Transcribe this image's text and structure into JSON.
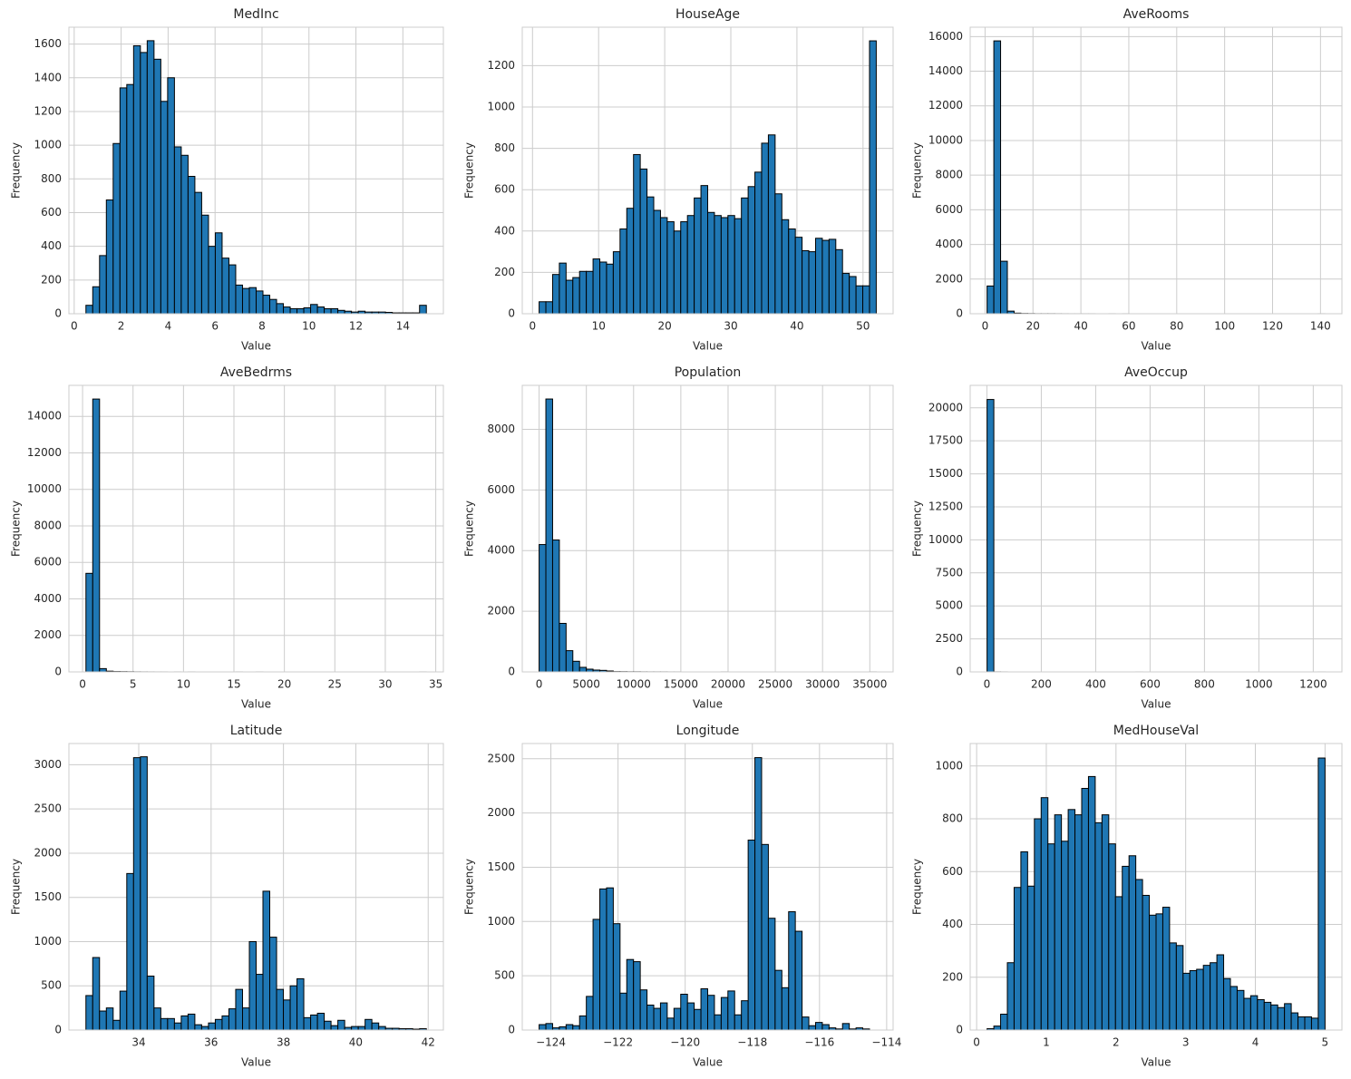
{
  "chart_data": [
    {
      "type": "histogram",
      "title": "MedInc",
      "xlabel": "Value",
      "ylabel": "Frequency",
      "color": "#1f77b4",
      "grid": true,
      "bins": [
        0.5,
        0.79,
        1.08,
        1.37,
        1.66,
        1.95,
        2.24,
        2.53,
        2.82,
        3.11,
        3.4,
        3.69,
        3.98,
        4.27,
        4.56,
        4.85,
        5.14,
        5.43,
        5.72,
        6.01,
        6.3,
        6.59,
        6.88,
        7.17,
        7.46,
        7.75,
        8.04,
        8.33,
        8.62,
        8.91,
        9.2,
        9.49,
        9.78,
        10.07,
        10.36,
        10.65,
        10.94,
        11.23,
        11.52,
        11.81,
        12.1,
        12.39,
        12.68,
        12.97,
        13.26,
        13.55,
        13.84,
        14.13,
        14.42,
        14.71,
        15.0
      ],
      "values": [
        50,
        160,
        345,
        675,
        1010,
        1340,
        1360,
        1590,
        1550,
        1620,
        1510,
        1260,
        1400,
        990,
        940,
        815,
        720,
        585,
        400,
        480,
        330,
        290,
        170,
        150,
        155,
        135,
        110,
        85,
        60,
        40,
        30,
        30,
        35,
        55,
        40,
        30,
        30,
        20,
        15,
        10,
        15,
        10,
        10,
        10,
        8,
        5,
        5,
        5,
        5,
        50
      ],
      "xlim": [
        -0.225,
        15.725
      ],
      "xticks": [
        0,
        2,
        4,
        6,
        8,
        10,
        12,
        14
      ],
      "ylim": [
        0,
        1700
      ],
      "yticks": [
        0,
        200,
        400,
        600,
        800,
        1000,
        1200,
        1400,
        1600
      ]
    },
    {
      "type": "histogram",
      "title": "HouseAge",
      "xlabel": "Value",
      "ylabel": "Frequency",
      "color": "#1f77b4",
      "grid": true,
      "bins": [
        1,
        2.02,
        3.04,
        4.06,
        5.08,
        6.1,
        7.12,
        8.14,
        9.16,
        10.18,
        11.2,
        12.22,
        13.24,
        14.26,
        15.28,
        16.3,
        17.32,
        18.34,
        19.36,
        20.38,
        21.4,
        22.42,
        23.44,
        24.46,
        25.48,
        26.5,
        27.52,
        28.54,
        29.56,
        30.58,
        31.6,
        32.62,
        33.64,
        34.66,
        35.68,
        36.7,
        37.72,
        38.74,
        39.76,
        40.78,
        41.8,
        42.82,
        43.84,
        44.86,
        45.88,
        46.9,
        47.92,
        48.94,
        49.96,
        50.98,
        52
      ],
      "values": [
        58,
        58,
        190,
        245,
        162,
        175,
        205,
        205,
        265,
        250,
        240,
        300,
        410,
        510,
        770,
        700,
        565,
        500,
        465,
        445,
        400,
        445,
        475,
        560,
        620,
        490,
        475,
        465,
        475,
        460,
        560,
        615,
        685,
        825,
        865,
        580,
        455,
        410,
        370,
        305,
        300,
        365,
        355,
        360,
        310,
        195,
        180,
        135,
        135,
        1320
      ],
      "xlim": [
        -1.55,
        54.55
      ],
      "xticks": [
        0,
        10,
        20,
        30,
        40,
        50
      ],
      "ylim": [
        0,
        1386
      ],
      "yticks": [
        0,
        200,
        400,
        600,
        800,
        1000,
        1200
      ]
    },
    {
      "type": "histogram",
      "title": "AveRooms",
      "xlabel": "Value",
      "ylabel": "Frequency",
      "color": "#1f77b4",
      "grid": true,
      "bins": [
        0.846,
        3.667,
        6.488,
        9.309,
        12.13,
        14.951,
        17.772,
        20.593,
        23.414,
        26.235,
        29.056,
        31.877,
        34.698,
        37.519,
        40.34,
        43.161,
        45.982,
        48.803,
        51.624,
        54.445,
        57.266,
        60.087,
        62.908,
        65.729,
        68.55,
        71.371,
        74.192,
        77.013,
        79.834,
        82.655,
        85.476,
        88.297,
        91.118,
        93.939,
        96.76,
        99.581,
        102.402,
        105.223,
        108.044,
        110.865,
        113.686,
        116.507,
        119.328,
        122.149,
        124.97,
        127.791,
        130.612,
        133.433,
        136.254,
        139.075,
        141.896
      ],
      "values": [
        1600,
        15750,
        3030,
        150,
        35,
        15,
        10,
        5,
        5,
        5,
        3,
        2,
        1,
        1,
        1,
        1,
        0,
        0,
        1,
        0,
        1,
        0,
        0,
        0,
        0,
        0,
        0,
        0,
        0,
        0,
        0,
        0,
        0,
        0,
        0,
        0,
        0,
        0,
        0,
        0,
        0,
        0,
        0,
        0,
        0,
        0,
        0,
        0,
        0,
        1
      ],
      "xlim": [
        -6.206,
        148.948
      ],
      "xticks": [
        0,
        20,
        40,
        60,
        80,
        100,
        120,
        140
      ],
      "ylim": [
        0,
        16540
      ],
      "yticks": [
        0,
        2000,
        4000,
        6000,
        8000,
        10000,
        12000,
        14000,
        16000
      ]
    },
    {
      "type": "histogram",
      "title": "AveBedrms",
      "xlabel": "Value",
      "ylabel": "Frequency",
      "color": "#1f77b4",
      "grid": true,
      "bins": [
        0.333,
        1.008,
        1.682,
        2.357,
        3.032,
        3.707,
        4.381,
        5.056,
        5.731,
        6.405,
        7.08,
        7.755,
        8.43,
        9.104,
        9.779,
        10.454,
        11.128,
        11.803,
        12.478,
        13.153,
        13.827,
        14.502,
        15.177,
        15.851,
        16.526,
        17.201,
        17.876,
        18.55,
        19.225,
        19.9,
        20.574,
        21.249,
        21.924,
        22.599,
        23.273,
        23.948,
        24.623,
        25.297,
        25.972,
        26.647,
        27.322,
        27.996,
        28.671,
        29.346,
        30.02,
        30.695,
        31.37,
        32.045,
        32.719,
        33.394,
        34.069
      ],
      "values": [
        5400,
        14950,
        180,
        40,
        20,
        15,
        10,
        5,
        3,
        2,
        1,
        1,
        0,
        1,
        0,
        1,
        0,
        0,
        0,
        0,
        0,
        0,
        1,
        0,
        0,
        1,
        0,
        0,
        0,
        0,
        0,
        0,
        0,
        0,
        0,
        0,
        0,
        0,
        0,
        0,
        0,
        0,
        0,
        0,
        0,
        0,
        0,
        0,
        0,
        1
      ],
      "xlim": [
        -1.354,
        35.756
      ],
      "xticks": [
        0,
        5,
        10,
        15,
        20,
        25,
        30,
        35
      ],
      "ylim": [
        0,
        15700
      ],
      "yticks": [
        0,
        2000,
        4000,
        6000,
        8000,
        10000,
        12000,
        14000
      ]
    },
    {
      "type": "histogram",
      "title": "Population",
      "xlabel": "Value",
      "ylabel": "Frequency",
      "color": "#1f77b4",
      "grid": true,
      "bins": [
        3,
        716.6,
        1430.2,
        2143.7,
        2857.3,
        3570.9,
        4284.5,
        4998.1,
        5711.6,
        6425.2,
        7138.8,
        7852.4,
        8566,
        9279.5,
        9993.1,
        10706.7,
        11420.3,
        12133.9,
        12847.4,
        13561,
        14274.6,
        14988.2,
        15701.8,
        16415.3,
        17128.9,
        17842.5,
        18556.1,
        19269.7,
        19983.2,
        20696.8,
        21410.4,
        22124,
        22837.6,
        23551.1,
        24264.7,
        24978.3,
        25691.9,
        26405.5,
        27119,
        27832.6,
        28546.2,
        29259.8,
        29973.4,
        30686.9,
        31400.5,
        32114.1,
        32827.7,
        33541.3,
        34254.8,
        34968.4,
        35682
      ],
      "values": [
        4200,
        9000,
        4350,
        1600,
        700,
        350,
        150,
        90,
        60,
        50,
        30,
        10,
        8,
        5,
        5,
        3,
        2,
        2,
        2,
        1,
        1,
        0,
        0,
        0,
        0,
        0,
        0,
        1,
        0,
        0,
        0,
        0,
        0,
        0,
        0,
        0,
        0,
        0,
        0,
        0,
        0,
        0,
        0,
        0,
        0,
        0,
        0,
        0,
        0,
        1
      ],
      "xlim": [
        -1781,
        37466
      ],
      "xticks": [
        0,
        5000,
        10000,
        15000,
        20000,
        25000,
        30000,
        35000
      ],
      "ylim": [
        0,
        9450
      ],
      "yticks": [
        0,
        2000,
        4000,
        6000,
        8000
      ]
    },
    {
      "type": "histogram",
      "title": "AveOccup",
      "xlabel": "Value",
      "ylabel": "Frequency",
      "color": "#1f77b4",
      "grid": true,
      "bins": [
        0.692,
        25.545,
        50.398,
        75.251,
        100.104,
        124.957,
        149.81,
        174.663,
        199.516,
        224.369,
        249.222,
        274.075,
        298.928,
        323.781,
        348.634,
        373.487,
        398.34,
        423.193,
        448.046,
        472.899,
        497.752,
        522.605,
        547.458,
        572.311,
        597.164,
        622.017,
        646.87,
        671.723,
        696.576,
        721.429,
        746.282,
        771.135,
        795.988,
        820.841,
        845.694,
        870.547,
        895.4,
        920.253,
        945.106,
        969.959,
        994.812,
        1019.665,
        1044.518,
        1069.371,
        1094.224,
        1119.077,
        1143.93,
        1168.783,
        1193.636,
        1218.489,
        1243.342
      ],
      "values": [
        20630,
        5,
        2,
        0,
        0,
        0,
        0,
        0,
        0,
        0,
        0,
        0,
        0,
        0,
        0,
        0,
        0,
        0,
        0,
        0,
        0,
        0,
        1,
        0,
        0,
        0,
        0,
        0,
        0,
        0,
        0,
        0,
        0,
        0,
        0,
        0,
        0,
        0,
        0,
        0,
        0,
        0,
        0,
        0,
        0,
        0,
        0,
        0,
        0,
        1
      ],
      "xlim": [
        -61.44,
        1305.47
      ],
      "xticks": [
        0,
        200,
        400,
        600,
        800,
        1000,
        1200
      ],
      "ylim": [
        0,
        21700
      ],
      "yticks": [
        0,
        2500,
        5000,
        7500,
        10000,
        12500,
        15000,
        17500,
        20000
      ]
    },
    {
      "type": "histogram",
      "title": "Latitude",
      "xlabel": "Value",
      "ylabel": "Frequency",
      "color": "#1f77b4",
      "grid": true,
      "bins": [
        32.54,
        32.728,
        32.916,
        33.105,
        33.293,
        33.481,
        33.669,
        33.857,
        34.046,
        34.234,
        34.422,
        34.61,
        34.798,
        34.987,
        35.175,
        35.363,
        35.551,
        35.739,
        35.928,
        36.116,
        36.304,
        36.492,
        36.68,
        36.869,
        37.057,
        37.245,
        37.433,
        37.621,
        37.81,
        37.998,
        38.186,
        38.374,
        38.562,
        38.751,
        38.939,
        39.127,
        39.315,
        39.503,
        39.692,
        39.88,
        40.068,
        40.256,
        40.444,
        40.633,
        40.821,
        41.009,
        41.197,
        41.385,
        41.574,
        41.762,
        41.95
      ],
      "values": [
        390,
        820,
        215,
        250,
        110,
        440,
        1770,
        3080,
        3090,
        610,
        250,
        130,
        130,
        80,
        160,
        180,
        60,
        40,
        80,
        120,
        160,
        240,
        460,
        250,
        1000,
        630,
        1570,
        1050,
        460,
        340,
        500,
        580,
        140,
        170,
        190,
        100,
        50,
        110,
        30,
        40,
        40,
        120,
        80,
        40,
        20,
        20,
        15,
        15,
        10,
        15
      ],
      "xlim": [
        32.07,
        42.42
      ],
      "xticks": [
        34,
        36,
        38,
        40,
        42
      ],
      "ylim": [
        0,
        3240
      ],
      "yticks": [
        0,
        500,
        1000,
        1500,
        2000,
        2500,
        3000
      ]
    },
    {
      "type": "histogram",
      "title": "Longitude",
      "xlabel": "Value",
      "ylabel": "Frequency",
      "color": "#1f77b4",
      "grid": true,
      "bins": [
        -124.35,
        -124.149,
        -123.948,
        -123.748,
        -123.547,
        -123.346,
        -123.145,
        -122.944,
        -122.744,
        -122.543,
        -122.342,
        -122.141,
        -121.94,
        -121.74,
        -121.539,
        -121.338,
        -121.137,
        -120.936,
        -120.736,
        -120.535,
        -120.334,
        -120.133,
        -119.932,
        -119.732,
        -119.531,
        -119.33,
        -119.129,
        -118.928,
        -118.728,
        -118.527,
        -118.326,
        -118.125,
        -117.924,
        -117.724,
        -117.523,
        -117.322,
        -117.121,
        -116.92,
        -116.72,
        -116.519,
        -116.318,
        -116.117,
        -115.916,
        -115.716,
        -115.515,
        -115.314,
        -115.113,
        -114.912,
        -114.712,
        -114.511,
        -114.31
      ],
      "values": [
        50,
        60,
        20,
        30,
        50,
        40,
        130,
        310,
        1020,
        1300,
        1310,
        980,
        340,
        650,
        630,
        370,
        230,
        200,
        250,
        110,
        200,
        330,
        250,
        190,
        380,
        320,
        140,
        300,
        360,
        140,
        270,
        1750,
        2510,
        1710,
        1030,
        550,
        390,
        1090,
        910,
        120,
        40,
        70,
        50,
        20,
        10,
        60,
        10,
        20,
        10,
        0
      ],
      "xlim": [
        -124.852,
        -113.808
      ],
      "xticks": [
        {
          "value": -124,
          "label": "−124"
        },
        {
          "value": -122,
          "label": "−122"
        },
        {
          "value": -120,
          "label": "−120"
        },
        {
          "value": -118,
          "label": "−118"
        },
        {
          "value": -116,
          "label": "−116"
        },
        {
          "value": -114,
          "label": "−114"
        }
      ],
      "ylim": [
        0,
        2640
      ],
      "yticks": [
        0,
        500,
        1000,
        1500,
        2000,
        2500
      ]
    },
    {
      "type": "histogram",
      "title": "MedHouseVal",
      "xlabel": "Value",
      "ylabel": "Frequency",
      "color": "#1f77b4",
      "grid": true,
      "bins": [
        0.15,
        0.247,
        0.344,
        0.441,
        0.538,
        0.635,
        0.732,
        0.829,
        0.926,
        1.023,
        1.12,
        1.217,
        1.314,
        1.411,
        1.508,
        1.605,
        1.702,
        1.799,
        1.896,
        1.993,
        2.09,
        2.187,
        2.284,
        2.381,
        2.478,
        2.575,
        2.672,
        2.769,
        2.866,
        2.963,
        3.06,
        3.157,
        3.254,
        3.351,
        3.448,
        3.545,
        3.642,
        3.739,
        3.836,
        3.933,
        4.03,
        4.127,
        4.224,
        4.321,
        4.418,
        4.515,
        4.612,
        4.709,
        4.806,
        4.903,
        5.0
      ],
      "values": [
        5,
        15,
        60,
        255,
        540,
        675,
        545,
        800,
        880,
        705,
        815,
        715,
        835,
        815,
        915,
        960,
        785,
        815,
        705,
        505,
        620,
        660,
        570,
        510,
        435,
        440,
        465,
        330,
        320,
        215,
        225,
        230,
        245,
        255,
        285,
        195,
        165,
        150,
        120,
        130,
        115,
        105,
        95,
        85,
        100,
        65,
        50,
        50,
        45,
        1030
      ],
      "xlim": [
        -0.0925,
        5.2425
      ],
      "xticks": [
        0,
        1,
        2,
        3,
        4,
        5
      ],
      "ylim": [
        0,
        1085
      ],
      "yticks": [
        0,
        200,
        400,
        600,
        800,
        1000
      ]
    }
  ]
}
